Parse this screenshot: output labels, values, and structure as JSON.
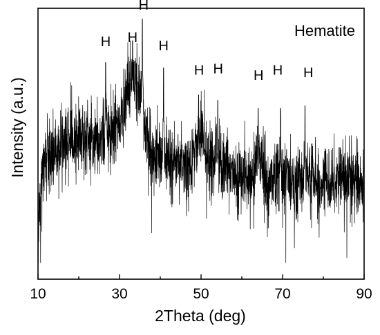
{
  "chart_data": {
    "type": "line",
    "title": "",
    "legend_text": "Hematite",
    "legend_position": "top-right",
    "xlabel": "2Theta (deg)",
    "ylabel": "Intensity (a.u.)",
    "xlim": [
      10,
      90
    ],
    "x_ticks": [
      10,
      30,
      50,
      70,
      90
    ],
    "y_ticks_shown": false,
    "grid": false,
    "series_color": "#000000",
    "series": [
      {
        "baseline": [
          [
            10,
            0.18
          ],
          [
            11,
            0.4
          ],
          [
            13,
            0.46
          ],
          [
            15,
            0.49
          ],
          [
            18,
            0.52
          ],
          [
            21,
            0.52
          ],
          [
            24,
            0.51
          ],
          [
            27,
            0.54
          ],
          [
            29,
            0.56
          ],
          [
            31,
            0.6
          ],
          [
            32,
            0.7
          ],
          [
            33,
            0.76
          ],
          [
            34,
            0.72
          ],
          [
            35,
            0.7
          ],
          [
            36,
            0.58
          ],
          [
            37,
            0.48
          ],
          [
            39,
            0.45
          ],
          [
            41,
            0.45
          ],
          [
            43,
            0.44
          ],
          [
            45,
            0.42
          ],
          [
            47,
            0.38
          ],
          [
            49,
            0.5
          ],
          [
            50,
            0.52
          ],
          [
            52,
            0.41
          ],
          [
            54,
            0.47
          ],
          [
            55,
            0.44
          ],
          [
            57,
            0.39
          ],
          [
            59,
            0.38
          ],
          [
            61,
            0.37
          ],
          [
            63,
            0.38
          ],
          [
            64,
            0.48
          ],
          [
            65,
            0.43
          ],
          [
            66,
            0.33
          ],
          [
            68,
            0.38
          ],
          [
            70,
            0.37
          ],
          [
            72,
            0.36
          ],
          [
            74,
            0.36
          ],
          [
            76,
            0.38
          ],
          [
            78,
            0.37
          ],
          [
            80,
            0.36
          ],
          [
            82,
            0.37
          ],
          [
            84,
            0.37
          ],
          [
            86,
            0.37
          ],
          [
            88,
            0.36
          ],
          [
            90,
            0.37
          ]
        ],
        "peaks": [
          [
            26.6,
            0.8
          ],
          [
            33.2,
            0.88
          ],
          [
            35.6,
            0.96
          ],
          [
            40.8,
            0.78
          ],
          [
            49.4,
            0.68
          ],
          [
            54.1,
            0.66
          ],
          [
            64.0,
            0.63
          ],
          [
            69.5,
            0.63
          ],
          [
            75.5,
            0.64
          ]
        ]
      }
    ],
    "peak_labels": [
      {
        "text": "H",
        "x": 26.6,
        "y": 0.86
      },
      {
        "text": "H",
        "x": 33.2,
        "y": 0.875
      },
      {
        "text": "H",
        "x": 35.9,
        "y": 0.995
      },
      {
        "text": "H",
        "x": 40.8,
        "y": 0.845
      },
      {
        "text": "H",
        "x": 49.5,
        "y": 0.755
      },
      {
        "text": "H",
        "x": 54.2,
        "y": 0.76
      },
      {
        "text": "H",
        "x": 64.1,
        "y": 0.735
      },
      {
        "text": "H",
        "x": 68.8,
        "y": 0.755
      },
      {
        "text": "H",
        "x": 76.3,
        "y": 0.745
      }
    ]
  }
}
